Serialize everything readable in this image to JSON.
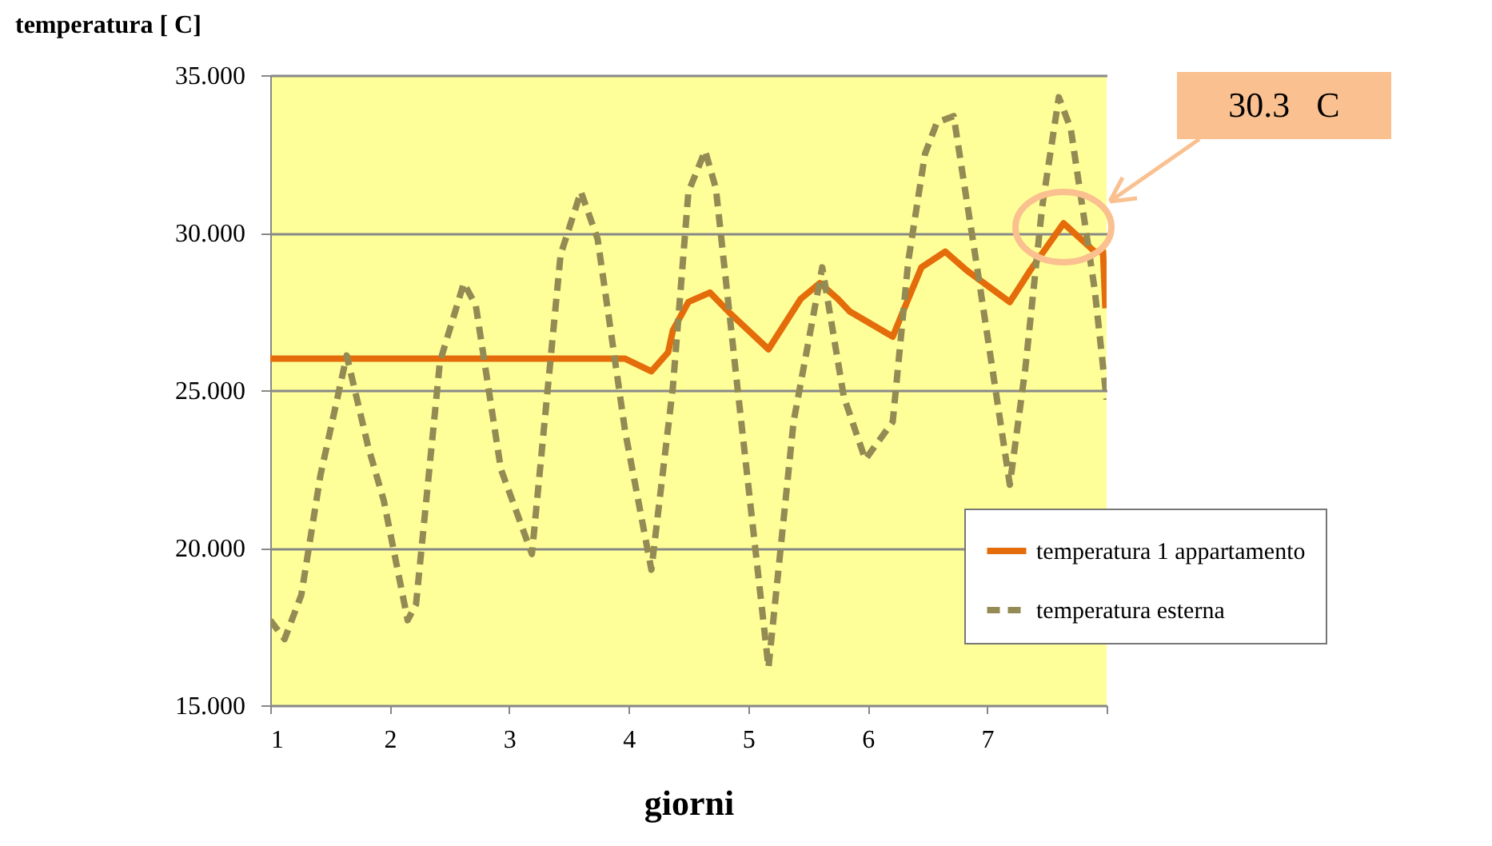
{
  "chart_data": {
    "type": "line",
    "xlabel": "giorni",
    "ylabel": "temperatura  [ C]",
    "xlim": [
      1,
      8
    ],
    "xticks": [
      1,
      2,
      3,
      4,
      5,
      6,
      7,
      {
        "value": 8,
        "label": null
      }
    ],
    "ylim": [
      15,
      35
    ],
    "yticks": [
      {
        "value": 15,
        "label": "15.000"
      },
      {
        "value": 20,
        "label": "20.000"
      },
      {
        "value": 25,
        "label": "25.000"
      },
      {
        "value": 30,
        "label": "30.000"
      },
      {
        "value": 35,
        "label": "35.000"
      }
    ],
    "grid": "y",
    "legend": "bottom right",
    "series": [
      {
        "name": "temperatura 1 appartamento",
        "color": "#e46c0a",
        "line_style": "solid",
        "x": [
          1,
          1.5,
          2,
          2.5,
          3,
          3.5,
          3.97,
          4.19,
          4.33,
          4.37,
          4.5,
          4.68,
          4.86,
          5.17,
          5.44,
          5.6,
          5.75,
          5.85,
          6.21,
          6.34,
          6.45,
          6.65,
          6.83,
          7.19,
          7.36,
          7.64,
          7.9,
          7.97,
          7.99
        ],
        "values": [
          26,
          26,
          26,
          26,
          26,
          26,
          26,
          25.6,
          26.2,
          26.9,
          27.8,
          28.1,
          27.4,
          26.3,
          27.9,
          28.4,
          27.9,
          27.5,
          26.7,
          27.9,
          28.9,
          29.4,
          28.8,
          27.8,
          28.8,
          30.3,
          29.4,
          29.4,
          27.6
        ]
      },
      {
        "name": "temperatura esterna",
        "color": "#948a54",
        "line_style": "dashed",
        "x": [
          1,
          1.12,
          1.26,
          1.42,
          1.64,
          1.82,
          1.95,
          2.15,
          2.22,
          2.42,
          2.62,
          2.72,
          2.93,
          3.19,
          3.43,
          3.6,
          3.74,
          3.97,
          4.19,
          4.37,
          4.5,
          4.64,
          4.73,
          4.91,
          5.17,
          5.38,
          5.62,
          5.8,
          5.98,
          6.21,
          6.34,
          6.48,
          6.58,
          6.72,
          6.92,
          7.19,
          7.32,
          7.46,
          7.6,
          7.7,
          7.9,
          8
        ],
        "values": [
          17.7,
          17.1,
          18.5,
          22.3,
          26.1,
          23.2,
          21.5,
          17.7,
          18.2,
          25.9,
          28.4,
          27.7,
          22.5,
          19.8,
          29.3,
          31.3,
          29.8,
          23.7,
          19.3,
          25.1,
          31.3,
          32.6,
          31.4,
          25.1,
          16.2,
          24,
          28.9,
          24.8,
          22.8,
          24,
          29.1,
          32.5,
          33.5,
          33.7,
          28.8,
          22,
          25.7,
          30.8,
          34.3,
          33.3,
          28.2,
          24.7
        ]
      }
    ],
    "annotations": [
      "30.3   C"
    ]
  }
}
